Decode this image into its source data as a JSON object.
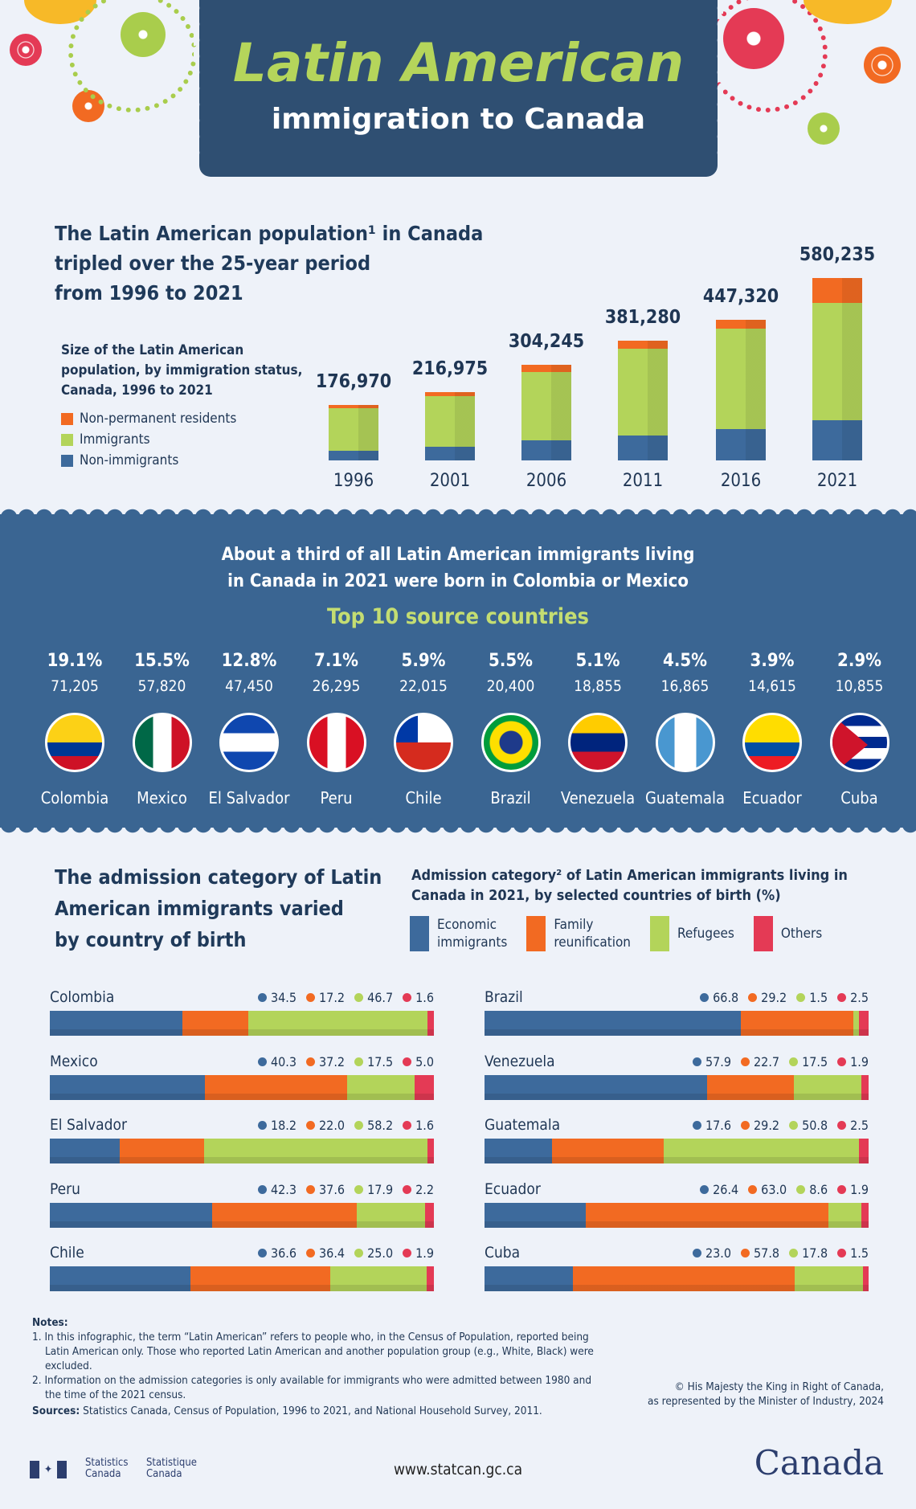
{
  "header": {
    "title": "Latin American",
    "subtitle": "immigration to Canada"
  },
  "colors": {
    "navy": "#2f4f72",
    "band": "#3a6592",
    "non_permanent": "#f26a22",
    "immigrants": "#b3d45a",
    "non_immigrants": "#3d6a9c",
    "economic": "#3d6a9c",
    "family": "#f26a22",
    "refugees": "#b3d45a",
    "others": "#e43a55"
  },
  "section1": {
    "heading_lines": [
      "The Latin American population¹ in Canada",
      "tripled over the 25-year period",
      "from 1996 to 2021"
    ],
    "chart_title_lines": [
      "Size of the Latin American",
      "population, by immigration status,",
      "Canada, 1996 to 2021"
    ]
  },
  "chart_data": [
    {
      "type": "bar",
      "stacked": true,
      "title": "Size of the Latin American population, by immigration status, Canada, 1996 to 2021",
      "categories": [
        "1996",
        "2001",
        "2006",
        "2011",
        "2016",
        "2021"
      ],
      "totals": [
        "176,970",
        "216,975",
        "304,245",
        "381,280",
        "447,320",
        "580,235"
      ],
      "legend": [
        "Non-permanent residents",
        "Immigrants",
        "Non-immigrants"
      ],
      "series": [
        {
          "name": "Non-immigrants",
          "values": [
            31000,
            44000,
            64000,
            79000,
            100000,
            128000
          ]
        },
        {
          "name": "Immigrants",
          "values": [
            136000,
            160000,
            217000,
            276000,
            319000,
            373000
          ]
        },
        {
          "name": "Non-permanent residents",
          "values": [
            9970,
            12975,
            23245,
            26280,
            28320,
            79235
          ]
        }
      ],
      "values_estimated": true
    },
    {
      "type": "bar",
      "stacked": true,
      "orientation": "horizontal",
      "title": "Admission category² of Latin American immigrants living in Canada in 2021, by selected countries of birth (%)",
      "legend": [
        "Economic immigrants",
        "Family reunification",
        "Refugees",
        "Others"
      ],
      "categories": [
        "Colombia",
        "Mexico",
        "El Salvador",
        "Peru",
        "Chile",
        "Brazil",
        "Venezuela",
        "Guatemala",
        "Ecuador",
        "Cuba"
      ],
      "values": [
        [
          "34.5",
          "17.2",
          "46.7",
          "1.6"
        ],
        [
          "40.3",
          "37.2",
          "17.5",
          "5.0"
        ],
        [
          "18.2",
          "22.0",
          "58.2",
          "1.6"
        ],
        [
          "42.3",
          "37.6",
          "17.9",
          "2.2"
        ],
        [
          "36.6",
          "36.4",
          "25.0",
          "1.9"
        ],
        [
          "66.8",
          "29.2",
          "1.5",
          "2.5"
        ],
        [
          "57.9",
          "22.7",
          "17.5",
          "1.9"
        ],
        [
          "17.6",
          "29.2",
          "50.8",
          "2.5"
        ],
        [
          "26.4",
          "63.0",
          "8.6",
          "1.9"
        ],
        [
          "23.0",
          "57.8",
          "17.8",
          "1.5"
        ]
      ]
    }
  ],
  "legend1": {
    "npr": "Non-permanent residents",
    "imm": "Immigrants",
    "non": "Non-immigrants"
  },
  "band": {
    "line1": "About a third of all Latin American immigrants living",
    "line2": "in Canada in 2021 were born in Colombia or Mexico",
    "title": "Top 10 source countries",
    "countries": [
      {
        "name": "Colombia",
        "pct": "19.1%",
        "count": "71,205",
        "flag": "colombia-flag"
      },
      {
        "name": "Mexico",
        "pct": "15.5%",
        "count": "57,820",
        "flag": "mexico-flag"
      },
      {
        "name": "El Salvador",
        "pct": "12.8%",
        "count": "47,450",
        "flag": "el-salvador-flag"
      },
      {
        "name": "Peru",
        "pct": "7.1%",
        "count": "26,295",
        "flag": "peru-flag"
      },
      {
        "name": "Chile",
        "pct": "5.9%",
        "count": "22,015",
        "flag": "chile-flag"
      },
      {
        "name": "Brazil",
        "pct": "5.5%",
        "count": "20,400",
        "flag": "brazil-flag"
      },
      {
        "name": "Venezuela",
        "pct": "5.1%",
        "count": "18,855",
        "flag": "venezuela-flag"
      },
      {
        "name": "Guatemala",
        "pct": "4.5%",
        "count": "16,865",
        "flag": "guatemala-flag"
      },
      {
        "name": "Ecuador",
        "pct": "3.9%",
        "count": "14,615",
        "flag": "ecuador-flag"
      },
      {
        "name": "Cuba",
        "pct": "2.9%",
        "count": "10,855",
        "flag": "cuba-flag"
      }
    ]
  },
  "section3": {
    "heading_lines": [
      "The admission category of Latin",
      "American immigrants varied",
      "by country of birth"
    ],
    "chart_title_lines": [
      "Admission category² of Latin American immigrants living in",
      "Canada in 2021, by selected countries of birth (%)"
    ],
    "legend": [
      "Economic\nimmigrants",
      "Family\nreunification",
      "Refugees",
      "Others"
    ]
  },
  "notes": {
    "title": "Notes:",
    "items": [
      "1.  In this infographic, the term “Latin American” refers to people who, in the Census of Population, reported being Latin American only. Those who reported Latin American and another population group (e.g., White, Black) were excluded.",
      "2.  Information on the admission categories is only available for immigrants who were admitted between 1980 and the time of the 2021 census."
    ],
    "sources_label": "Sources:",
    "sources": " Statistics Canada, Census of Population, 1996 to 2021, and National Household Survey, 2011.",
    "copyright_lines": [
      "© His Majesty the King in Right of Canada,",
      "as represented by the Minister of Industry, 2024"
    ]
  },
  "footer": {
    "statcan_en": "Statistics\nCanada",
    "statcan_fr": "Statistique\nCanada",
    "url": "www.statcan.gc.ca",
    "wordmark": "Canada"
  }
}
